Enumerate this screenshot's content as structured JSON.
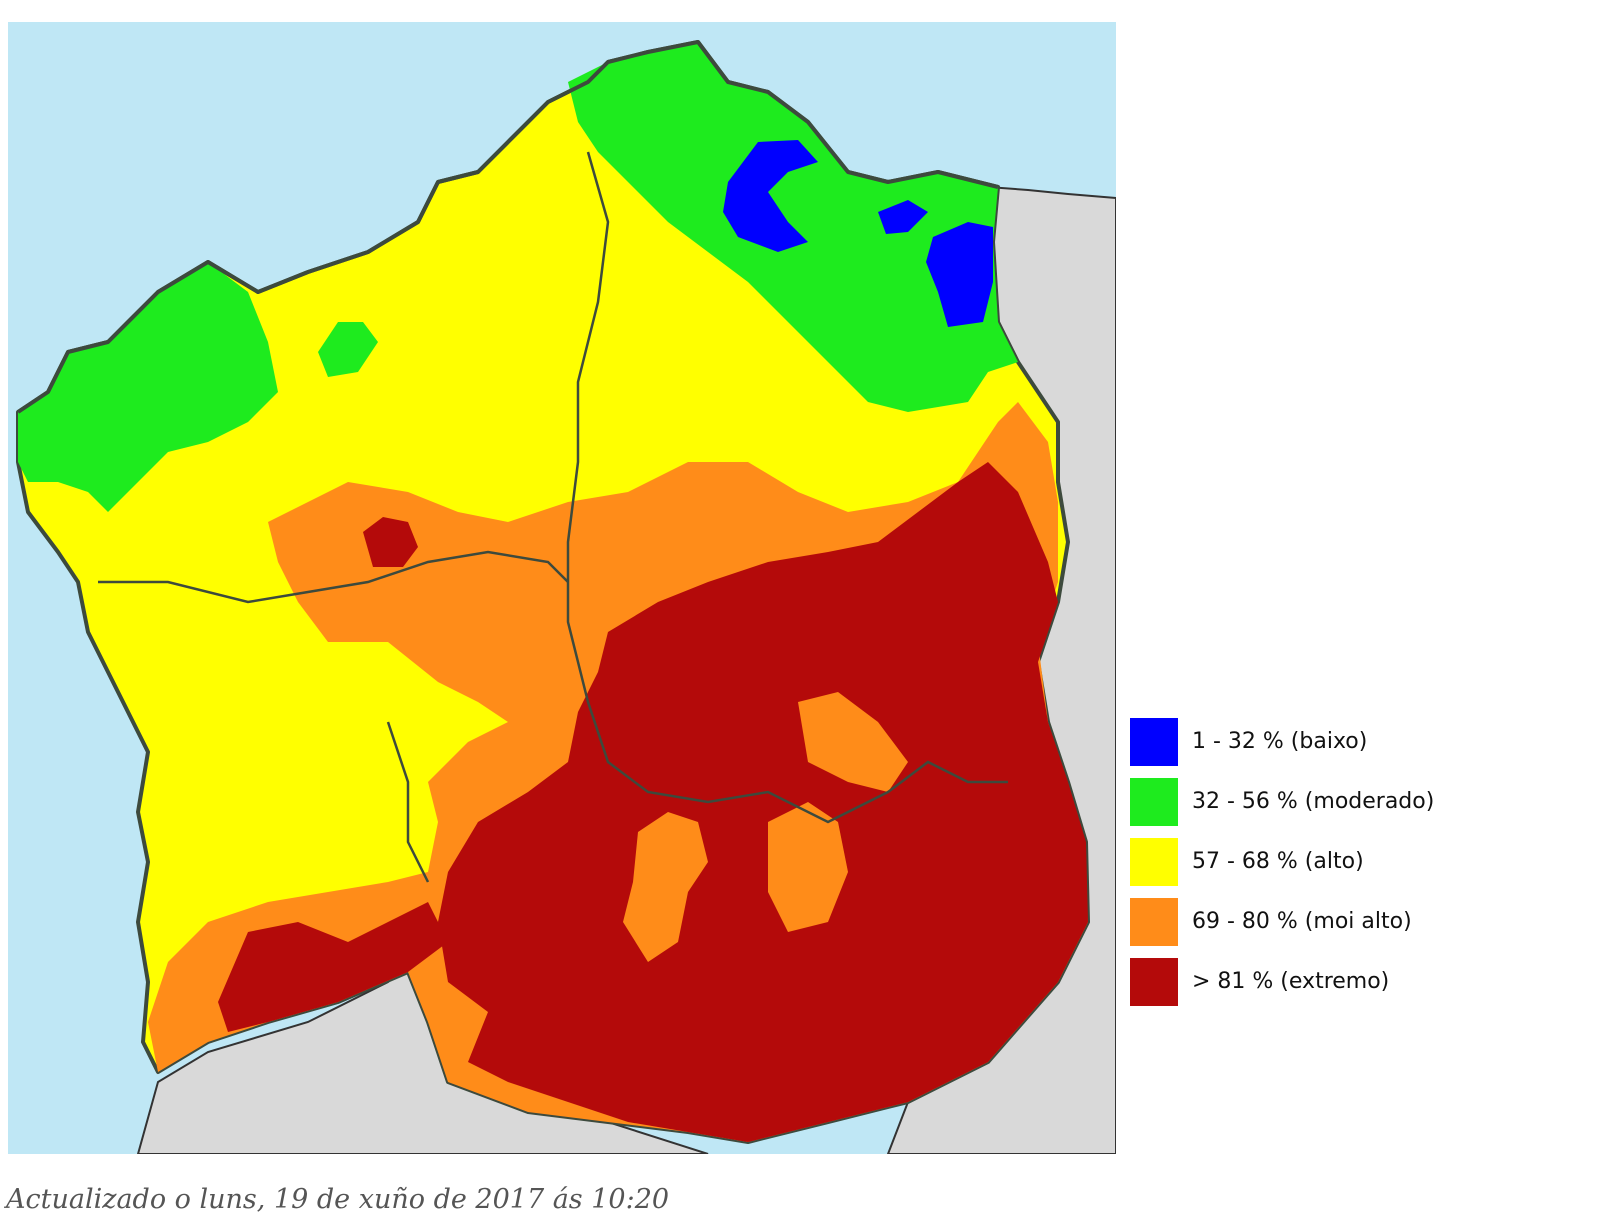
{
  "legend": {
    "items": [
      {
        "label": "1 - 32 % (baixo)",
        "color": "#0000ff"
      },
      {
        "label": "32 - 56 % (moderado)",
        "color": "#1eeb1e"
      },
      {
        "label": "57 - 68 % (alto)",
        "color": "#ffff00"
      },
      {
        "label": "69 - 80 % (moi alto)",
        "color": "#ff8c19"
      },
      {
        "label": "> 81 % (extremo)",
        "color": "#b40a0a"
      }
    ]
  },
  "timestamp": "Actualizado o luns, 19 de xuño de 2017 ás 10:20",
  "map": {
    "sea_color": "#bfe7f5",
    "land_outside_color": "#d9d9d9",
    "border_color": "#3d4a3d"
  }
}
